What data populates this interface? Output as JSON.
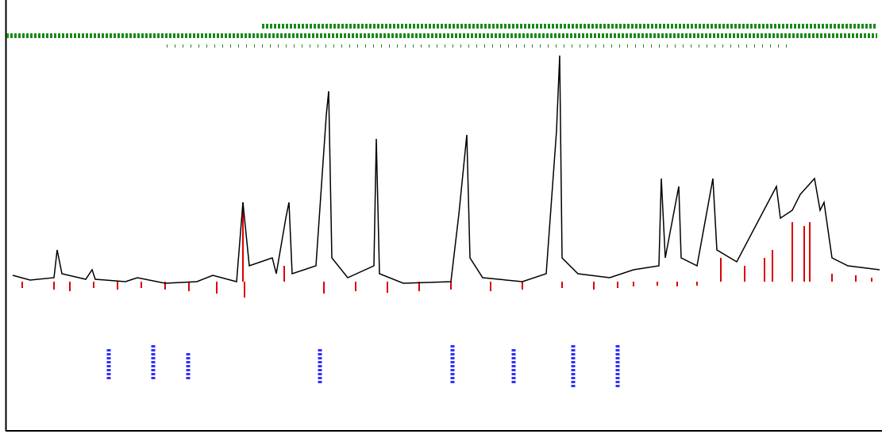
{
  "chart_data": {
    "type": "spectrum",
    "xlim": [
      0,
      1100
    ],
    "ylim": [
      -60,
      300
    ],
    "series": [
      {
        "color": "#000000",
        "style": "line",
        "x": [
          8,
          30,
          60,
          64,
          70,
          100,
          108,
          112,
          150,
          165,
          200,
          240,
          260,
          290,
          298,
          302,
          306,
          335,
          340,
          352,
          356,
          360,
          390,
          403,
          406,
          410,
          430,
          463,
          466,
          470,
          500,
          560,
          570,
          580,
          584,
          600,
          650,
          680,
          693,
          697,
          700,
          720,
          760,
          790,
          822,
          825,
          830,
          847,
          850,
          870,
          890,
          895,
          920,
          970,
          975,
          990,
          1000,
          1018,
          1025,
          1030,
          1040,
          1060,
          1100
        ],
        "values": [
          8,
          2,
          5,
          40,
          10,
          3,
          15,
          3,
          0,
          5,
          -2,
          0,
          8,
          0,
          100,
          60,
          20,
          30,
          10,
          80,
          100,
          10,
          20,
          210,
          240,
          30,
          5,
          20,
          180,
          10,
          -2,
          0,
          85,
          185,
          30,
          5,
          0,
          10,
          190,
          285,
          30,
          10,
          5,
          15,
          20,
          130,
          30,
          120,
          30,
          20,
          130,
          40,
          25,
          120,
          80,
          90,
          110,
          130,
          90,
          100,
          30,
          20,
          15
        ]
      },
      {
        "color": "#dd0000",
        "style": "stick",
        "x": [
          20,
          60,
          80,
          110,
          140,
          170,
          200,
          230,
          265,
          298,
          300,
          350,
          400,
          440,
          480,
          520,
          560,
          610,
          650,
          700,
          740,
          770,
          790,
          820,
          845,
          870,
          900,
          930,
          955,
          965,
          990,
          1005,
          1012,
          1040,
          1070,
          1090
        ],
        "values": [
          -8,
          -10,
          -12,
          -8,
          -10,
          -8,
          -10,
          -12,
          -15,
          100,
          -20,
          20,
          -15,
          -12,
          -14,
          -12,
          -10,
          -12,
          -10,
          -8,
          -10,
          -8,
          -6,
          -5,
          -6,
          -5,
          30,
          20,
          30,
          40,
          75,
          70,
          75,
          10,
          8,
          5
        ]
      }
    ]
  }
}
